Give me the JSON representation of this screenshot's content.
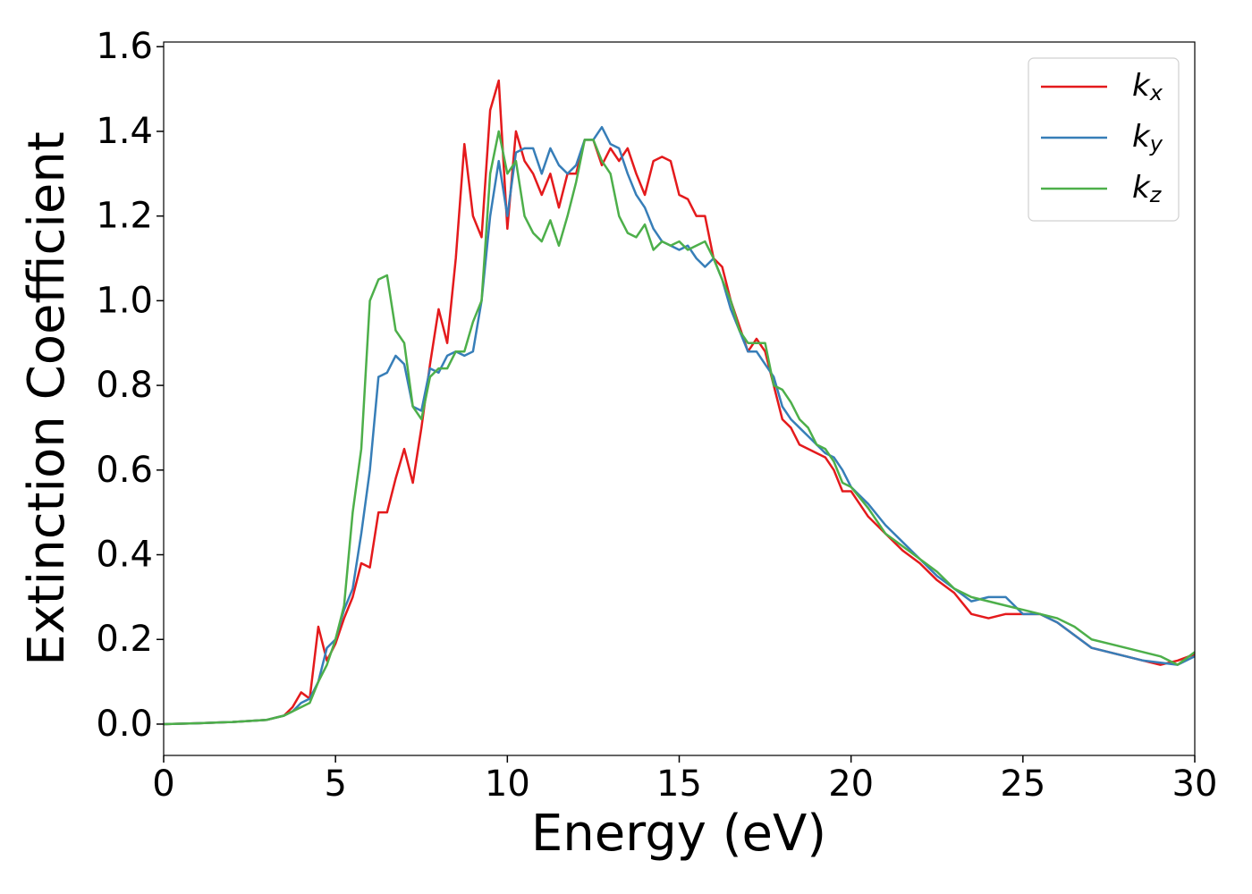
{
  "chart_data": {
    "type": "line",
    "x_label": "Energy (eV)",
    "y_label": "Extinction Coefficient",
    "x": [
      0,
      1,
      2,
      3,
      3.5,
      3.75,
      4,
      4.25,
      4.5,
      4.75,
      5,
      5.25,
      5.5,
      5.75,
      6,
      6.25,
      6.5,
      6.75,
      7,
      7.25,
      7.5,
      7.75,
      8,
      8.25,
      8.5,
      8.75,
      9,
      9.25,
      9.5,
      9.75,
      10,
      10.25,
      10.5,
      10.75,
      11,
      11.25,
      11.5,
      11.75,
      12,
      12.25,
      12.5,
      12.75,
      13,
      13.25,
      13.5,
      13.75,
      14,
      14.25,
      14.5,
      14.75,
      15,
      15.25,
      15.5,
      15.75,
      16,
      16.25,
      16.5,
      16.75,
      17,
      17.25,
      17.5,
      17.75,
      18,
      18.25,
      18.5,
      18.75,
      19,
      19.25,
      19.5,
      19.75,
      20,
      20.5,
      21,
      21.5,
      22,
      22.5,
      23,
      23.5,
      24,
      24.5,
      25,
      25.5,
      26,
      26.5,
      27,
      27.5,
      28,
      28.5,
      29,
      29.5,
      30
    ],
    "series": [
      {
        "name": "kx",
        "color": "#e41a1c",
        "values": [
          0,
          0.002,
          0.005,
          0.01,
          0.02,
          0.04,
          0.075,
          0.06,
          0.23,
          0.15,
          0.19,
          0.25,
          0.3,
          0.38,
          0.37,
          0.5,
          0.5,
          0.58,
          0.65,
          0.57,
          0.7,
          0.85,
          0.98,
          0.9,
          1.1,
          1.37,
          1.2,
          1.15,
          1.45,
          1.52,
          1.17,
          1.4,
          1.33,
          1.3,
          1.25,
          1.3,
          1.22,
          1.3,
          1.3,
          1.38,
          1.38,
          1.32,
          1.36,
          1.33,
          1.36,
          1.3,
          1.25,
          1.33,
          1.34,
          1.33,
          1.25,
          1.24,
          1.2,
          1.2,
          1.1,
          1.08,
          1.0,
          0.94,
          0.88,
          0.91,
          0.88,
          0.8,
          0.72,
          0.7,
          0.66,
          0.65,
          0.64,
          0.63,
          0.6,
          0.55,
          0.55,
          0.49,
          0.45,
          0.41,
          0.38,
          0.34,
          0.31,
          0.26,
          0.25,
          0.26,
          0.26,
          0.26,
          0.24,
          0.21,
          0.18,
          0.17,
          0.16,
          0.15,
          0.14,
          0.15,
          0.165
        ]
      },
      {
        "name": "ky",
        "color": "#377eb8",
        "values": [
          0,
          0.002,
          0.005,
          0.01,
          0.02,
          0.03,
          0.05,
          0.06,
          0.1,
          0.18,
          0.2,
          0.27,
          0.32,
          0.45,
          0.6,
          0.82,
          0.83,
          0.87,
          0.85,
          0.75,
          0.74,
          0.84,
          0.83,
          0.87,
          0.88,
          0.87,
          0.88,
          1.0,
          1.2,
          1.33,
          1.2,
          1.35,
          1.36,
          1.36,
          1.3,
          1.36,
          1.32,
          1.3,
          1.32,
          1.38,
          1.38,
          1.41,
          1.37,
          1.36,
          1.3,
          1.25,
          1.22,
          1.17,
          1.14,
          1.13,
          1.12,
          1.13,
          1.1,
          1.08,
          1.1,
          1.05,
          0.98,
          0.93,
          0.88,
          0.88,
          0.85,
          0.82,
          0.75,
          0.72,
          0.7,
          0.68,
          0.66,
          0.64,
          0.63,
          0.6,
          0.56,
          0.52,
          0.47,
          0.43,
          0.39,
          0.35,
          0.32,
          0.29,
          0.3,
          0.3,
          0.26,
          0.26,
          0.24,
          0.21,
          0.18,
          0.17,
          0.16,
          0.15,
          0.145,
          0.14,
          0.16
        ]
      },
      {
        "name": "kz",
        "color": "#4daf4a",
        "values": [
          0,
          0.002,
          0.005,
          0.01,
          0.02,
          0.03,
          0.04,
          0.05,
          0.1,
          0.14,
          0.2,
          0.28,
          0.5,
          0.65,
          1.0,
          1.05,
          1.06,
          0.93,
          0.9,
          0.75,
          0.72,
          0.82,
          0.84,
          0.84,
          0.88,
          0.88,
          0.95,
          1.0,
          1.3,
          1.4,
          1.3,
          1.33,
          1.2,
          1.16,
          1.14,
          1.19,
          1.13,
          1.2,
          1.28,
          1.38,
          1.38,
          1.33,
          1.3,
          1.2,
          1.16,
          1.15,
          1.18,
          1.12,
          1.14,
          1.13,
          1.14,
          1.12,
          1.13,
          1.14,
          1.1,
          1.05,
          1.0,
          0.93,
          0.9,
          0.9,
          0.9,
          0.8,
          0.79,
          0.76,
          0.72,
          0.7,
          0.66,
          0.65,
          0.62,
          0.57,
          0.56,
          0.51,
          0.45,
          0.42,
          0.39,
          0.36,
          0.32,
          0.3,
          0.29,
          0.28,
          0.27,
          0.26,
          0.25,
          0.23,
          0.2,
          0.19,
          0.18,
          0.17,
          0.16,
          0.14,
          0.17
        ]
      }
    ],
    "xlim": [
      0,
      30
    ],
    "xticks": [
      0,
      5,
      10,
      15,
      20,
      25,
      30
    ],
    "ylim": [
      -0.074,
      1.611
    ],
    "yticks": [
      {
        "value": 0,
        "label": "0.0"
      },
      0.2,
      0.4,
      0.6,
      0.8,
      {
        "value": 1,
        "label": "1.0"
      },
      1.2,
      1.4,
      1.6
    ],
    "grid": false,
    "legend": "upper right"
  }
}
